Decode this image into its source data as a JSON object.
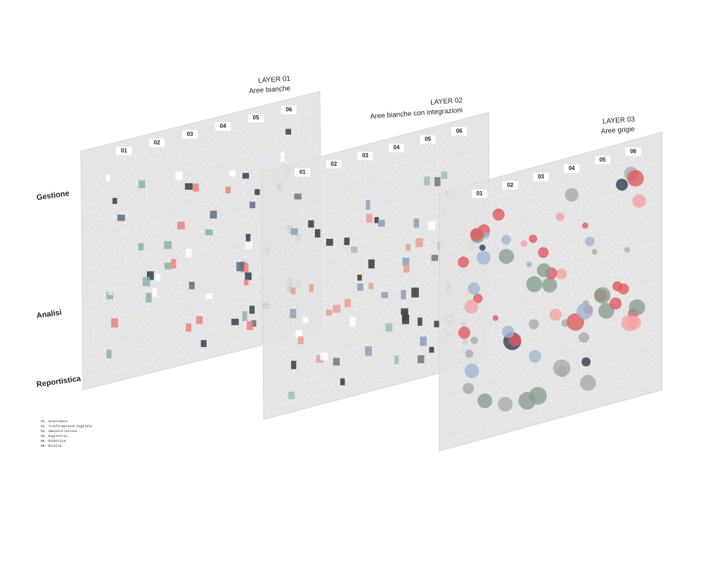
{
  "layers": [
    {
      "title": "LAYER 01",
      "subtitle": "Aree bianche",
      "columns": [
        "01",
        "02",
        "03",
        "04",
        "05",
        "06"
      ]
    },
    {
      "title": "LAYER 02",
      "subtitle": "Aree bianche con integrazioni",
      "columns": [
        "01",
        "02",
        "03",
        "04",
        "05",
        "06"
      ]
    },
    {
      "title": "LAYER 03",
      "subtitle": "Aree grigie",
      "columns": [
        "01",
        "02",
        "03",
        "04",
        "05",
        "06"
      ]
    }
  ],
  "rows": [
    "Gestione",
    "Analisi",
    "Reportistica"
  ],
  "legend": [
    "01. Governance",
    "02. Trasformazione Digitale",
    "03. Amministrazione",
    "04. Segreteria",
    "05. Didattica",
    "06. Ricerca"
  ]
}
